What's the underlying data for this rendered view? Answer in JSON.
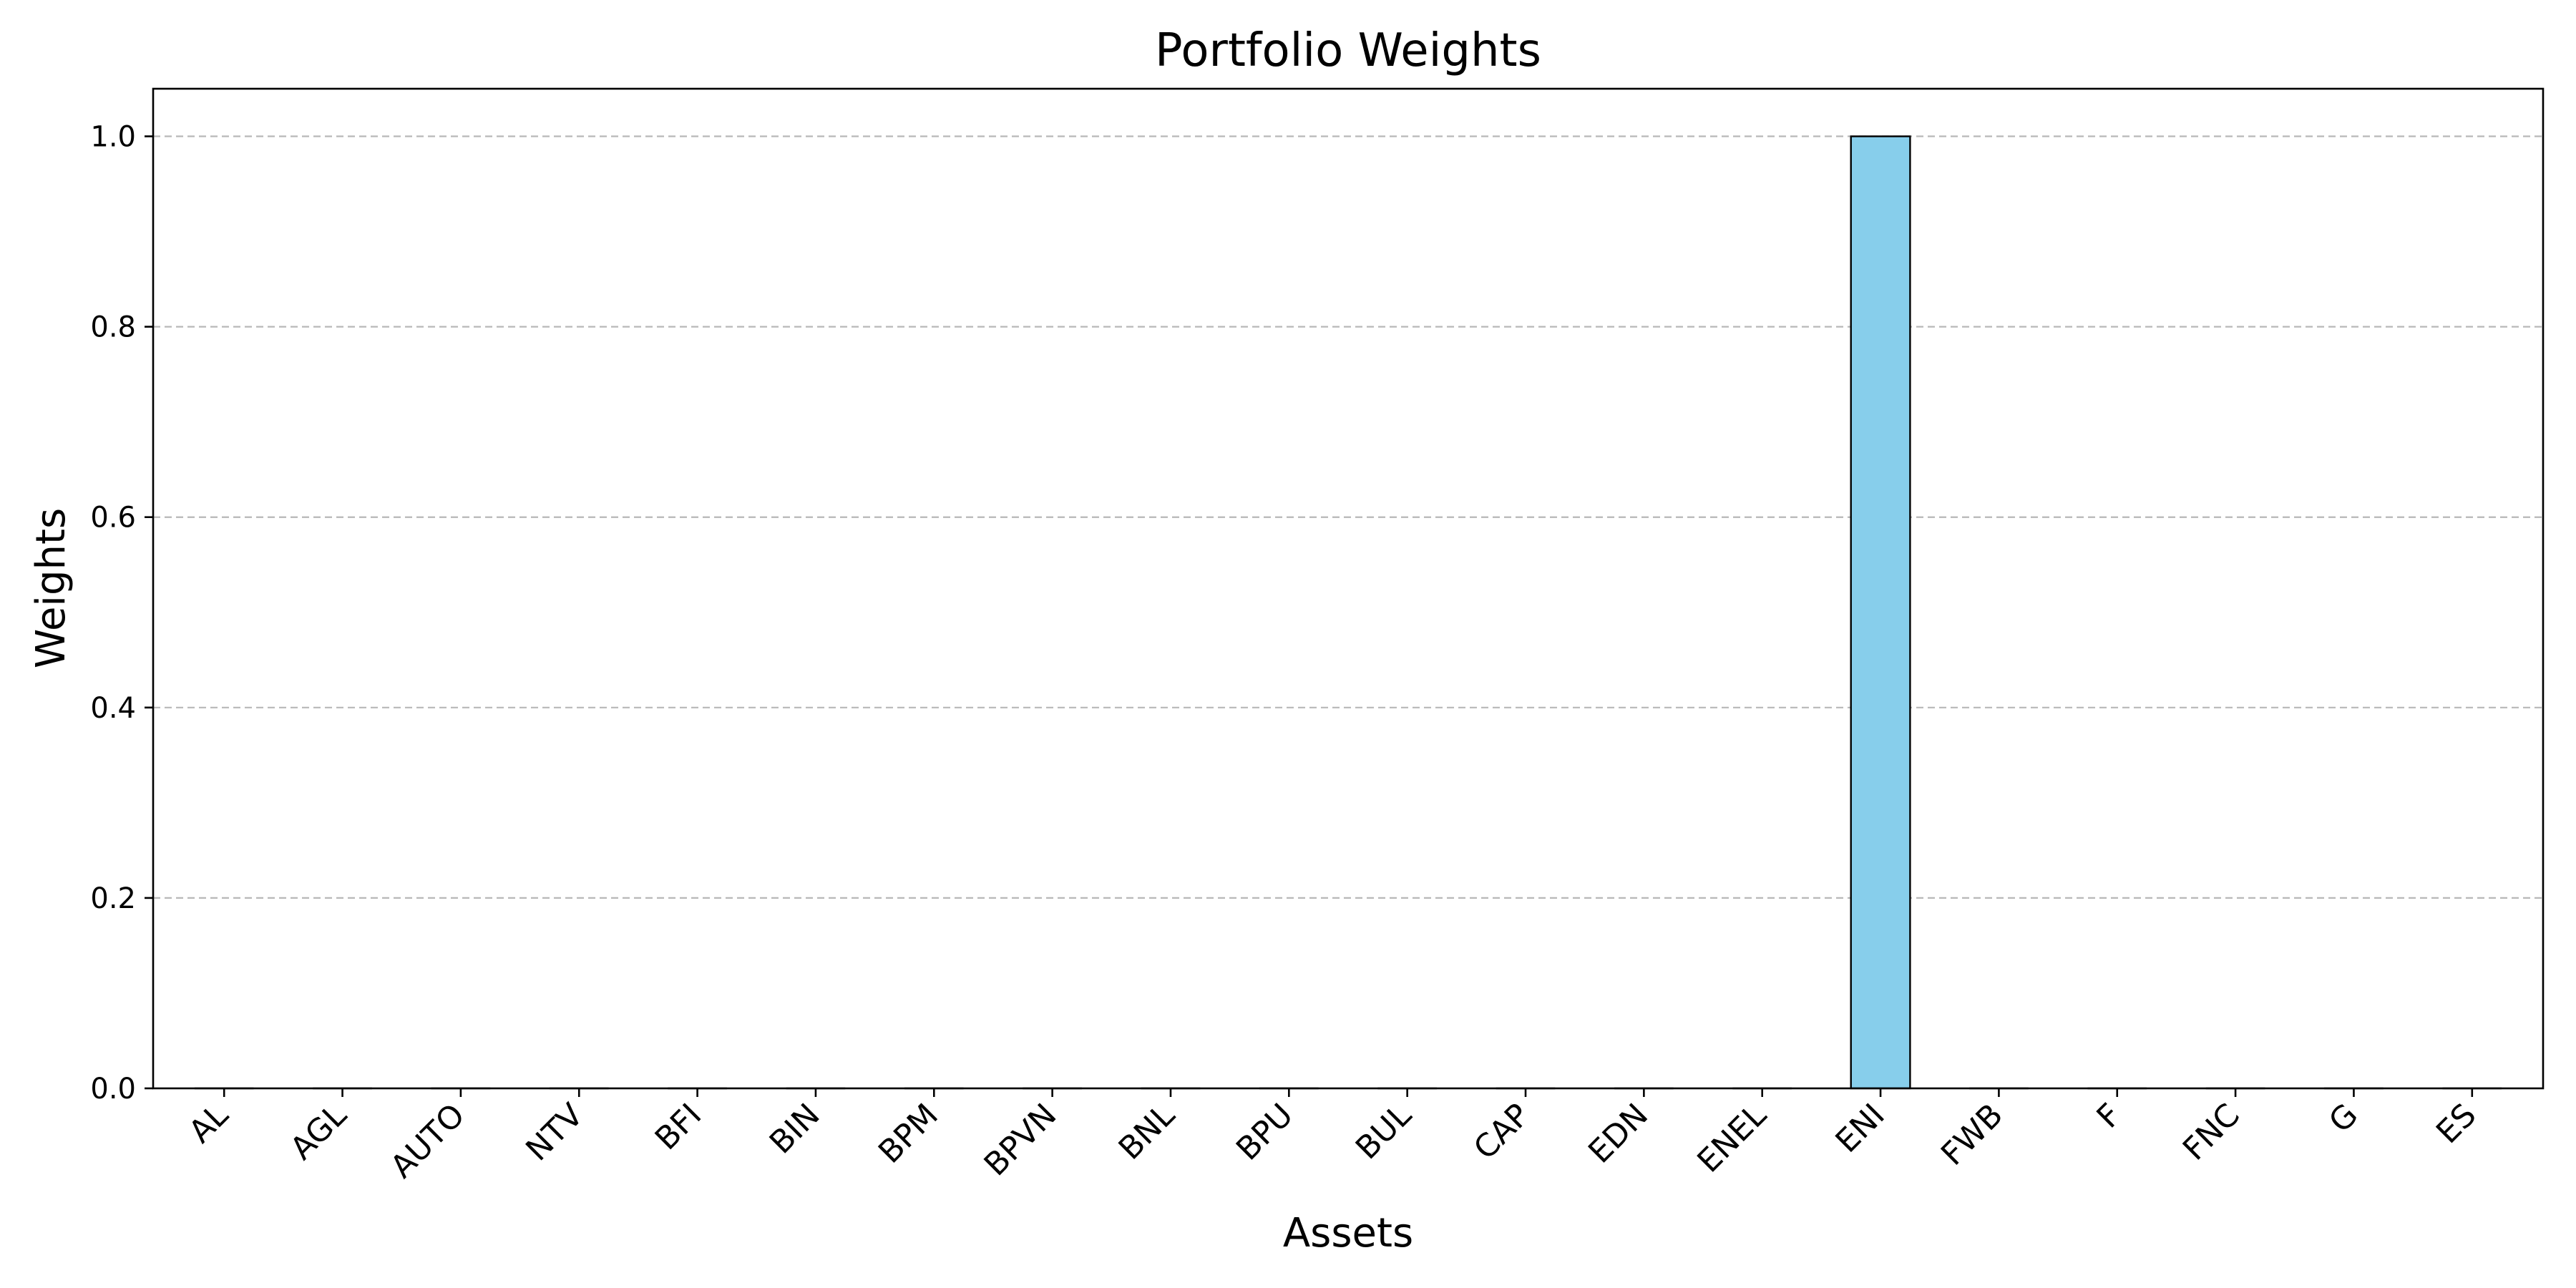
{
  "chart_data": {
    "type": "bar",
    "title": "Portfolio Weights",
    "xlabel": "Assets",
    "ylabel": "Weights",
    "categories": [
      "AL",
      "AGL",
      "AUTO",
      "NTV",
      "BFI",
      "BIN",
      "BPM",
      "BPVN",
      "BNL",
      "BPU",
      "BUL",
      "CAP",
      "EDN",
      "ENEL",
      "ENI",
      "FWB",
      "F",
      "FNC",
      "G",
      "ES"
    ],
    "values": [
      0,
      0,
      0,
      0,
      0,
      0,
      0,
      0,
      0,
      0,
      0,
      0,
      0,
      0,
      1.0,
      0,
      0,
      0,
      0,
      0
    ],
    "ylim": [
      0,
      1.05
    ],
    "yticks": [
      "0.0",
      "0.2",
      "0.4",
      "0.6",
      "0.8",
      "1.0"
    ],
    "grid": "y-dashed",
    "bar_color": "#87ceeb",
    "edge_color": "#000000"
  }
}
